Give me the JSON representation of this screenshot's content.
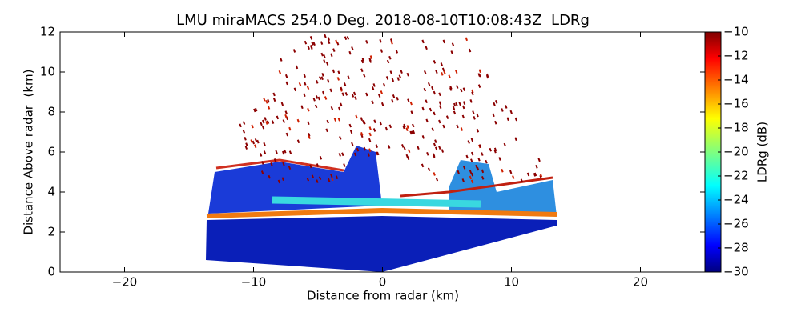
{
  "chart_data": {
    "type": "rhi",
    "title": "LMU miraMACS 254.0 Deg. 2018-08-10T10:08:43Z  LDRg",
    "xlabel": "Distance from radar (km)",
    "ylabel": "Distance Above radar  (km)",
    "xlim": [
      -25,
      25
    ],
    "xticks": [
      {
        "value": -20,
        "label": "−20"
      },
      {
        "value": -10,
        "label": "−10"
      },
      0,
      10,
      20
    ],
    "ylim": [
      0,
      12
    ],
    "yticks": [
      0,
      2,
      4,
      6,
      8,
      10,
      12
    ],
    "colormap": "jet",
    "colorbar": {
      "label": "LDRg (dB)",
      "lim": [
        -30,
        -10
      ],
      "ticks": [
        {
          "value": -30,
          "label": "−30"
        },
        {
          "value": -28,
          "label": "−28"
        },
        {
          "value": -26,
          "label": "−26"
        },
        {
          "value": -24,
          "label": "−24"
        },
        {
          "value": -22,
          "label": "−22"
        },
        {
          "value": -20,
          "label": "−20"
        },
        {
          "value": -18,
          "label": "−18"
        },
        {
          "value": -16,
          "label": "−16"
        },
        {
          "value": -14,
          "label": "−14"
        },
        {
          "value": -12,
          "label": "−12"
        },
        {
          "value": -10,
          "label": "−10"
        }
      ]
    }
  }
}
